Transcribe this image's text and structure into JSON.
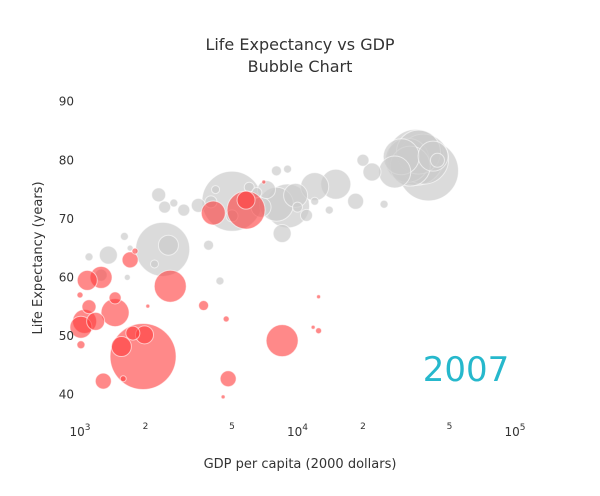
{
  "chart_data": {
    "type": "scatter",
    "title": "Life Expectancy vs GDP",
    "subtitle": "Bubble Chart",
    "xlabel": "GDP per capita (2000 dollars)",
    "ylabel": "Life Expectancy (years)",
    "x_scale": "log",
    "xlim": [
      1000,
      100000
    ],
    "ylim": [
      36,
      92
    ],
    "x_major_ticks": [
      {
        "value": 1000,
        "base": "10",
        "exp": "3"
      },
      {
        "value": 10000,
        "base": "10",
        "exp": "4"
      },
      {
        "value": 100000,
        "base": "10",
        "exp": "5"
      }
    ],
    "x_minor_ticks": [
      {
        "value": 2000,
        "label": "2"
      },
      {
        "value": 5000,
        "label": "5"
      },
      {
        "value": 20000,
        "label": "2"
      },
      {
        "value": 50000,
        "label": "5"
      }
    ],
    "y_ticks": [
      40,
      50,
      60,
      70,
      80,
      90
    ],
    "annotation": "2007",
    "colors": {
      "highlight": "#ff3b3b",
      "other": "#cccccc",
      "annotation": "#26b8cc"
    },
    "series": [
      {
        "color": "#ff3b3b",
        "points": [
          {
            "x": 1950,
            "y": 46.5,
            "r": 33
          },
          {
            "x": 1050,
            "y": 52.5,
            "r": 12
          },
          {
            "x": 1010,
            "y": 51.5,
            "r": 11
          },
          {
            "x": 1080,
            "y": 59.5,
            "r": 10
          },
          {
            "x": 1250,
            "y": 60.0,
            "r": 11
          },
          {
            "x": 1450,
            "y": 54.0,
            "r": 14
          },
          {
            "x": 1550,
            "y": 48.2,
            "r": 10
          },
          {
            "x": 1180,
            "y": 52.5,
            "r": 9
          },
          {
            "x": 1450,
            "y": 56.5,
            "r": 6
          },
          {
            "x": 1700,
            "y": 63.0,
            "r": 8
          },
          {
            "x": 1750,
            "y": 50.5,
            "r": 7
          },
          {
            "x": 1980,
            "y": 50.2,
            "r": 9
          },
          {
            "x": 2600,
            "y": 58.5,
            "r": 16
          },
          {
            "x": 1280,
            "y": 42.3,
            "r": 8
          },
          {
            "x": 3700,
            "y": 55.2,
            "r": 5
          },
          {
            "x": 4800,
            "y": 42.7,
            "r": 8
          },
          {
            "x": 4700,
            "y": 52.9,
            "r": 3
          },
          {
            "x": 4550,
            "y": 39.6,
            "r": 2
          },
          {
            "x": 8500,
            "y": 49.2,
            "r": 16
          },
          {
            "x": 4100,
            "y": 71.0,
            "r": 12
          },
          {
            "x": 5800,
            "y": 71.5,
            "r": 19
          },
          {
            "x": 5800,
            "y": 73.2,
            "r": 9
          },
          {
            "x": 12500,
            "y": 56.7,
            "r": 2
          },
          {
            "x": 12500,
            "y": 50.9,
            "r": 3
          },
          {
            "x": 11800,
            "y": 51.5,
            "r": 2
          },
          {
            "x": 7000,
            "y": 76.3,
            "r": 2
          },
          {
            "x": 1100,
            "y": 55.0,
            "r": 7
          },
          {
            "x": 1580,
            "y": 42.7,
            "r": 3
          },
          {
            "x": 1000,
            "y": 57.0,
            "r": 3
          },
          {
            "x": 2050,
            "y": 55.1,
            "r": 2
          },
          {
            "x": 1790,
            "y": 64.5,
            "r": 3
          },
          {
            "x": 1010,
            "y": 48.5,
            "r": 4
          }
        ]
      },
      {
        "color": "#cccccc",
        "points": [
          {
            "x": 2400,
            "y": 64.8,
            "r": 27
          },
          {
            "x": 2550,
            "y": 65.5,
            "r": 10
          },
          {
            "x": 5000,
            "y": 73.0,
            "r": 30
          },
          {
            "x": 40000,
            "y": 78.2,
            "r": 30
          },
          {
            "x": 35000,
            "y": 80.5,
            "r": 28
          },
          {
            "x": 32000,
            "y": 80.0,
            "r": 22
          },
          {
            "x": 36000,
            "y": 81.4,
            "r": 22
          },
          {
            "x": 38000,
            "y": 80.2,
            "r": 25
          },
          {
            "x": 33000,
            "y": 79.0,
            "r": 20
          },
          {
            "x": 30000,
            "y": 80.6,
            "r": 18
          },
          {
            "x": 28000,
            "y": 78.0,
            "r": 16
          },
          {
            "x": 42000,
            "y": 80.7,
            "r": 15
          },
          {
            "x": 9000,
            "y": 72.2,
            "r": 22
          },
          {
            "x": 8000,
            "y": 72.5,
            "r": 17
          },
          {
            "x": 9800,
            "y": 74.0,
            "r": 12
          },
          {
            "x": 12000,
            "y": 75.5,
            "r": 14
          },
          {
            "x": 15000,
            "y": 75.9,
            "r": 15
          },
          {
            "x": 18500,
            "y": 73.0,
            "r": 8
          },
          {
            "x": 22000,
            "y": 78.0,
            "r": 9
          },
          {
            "x": 20000,
            "y": 80.0,
            "r": 6
          },
          {
            "x": 44000,
            "y": 80.0,
            "r": 7
          },
          {
            "x": 8500,
            "y": 67.5,
            "r": 9
          },
          {
            "x": 7200,
            "y": 75.0,
            "r": 9
          },
          {
            "x": 6800,
            "y": 72.0,
            "r": 10
          },
          {
            "x": 2300,
            "y": 74.1,
            "r": 7
          },
          {
            "x": 2450,
            "y": 72.0,
            "r": 6
          },
          {
            "x": 2700,
            "y": 72.7,
            "r": 4
          },
          {
            "x": 3000,
            "y": 71.5,
            "r": 6
          },
          {
            "x": 3500,
            "y": 72.3,
            "r": 7
          },
          {
            "x": 4000,
            "y": 72.9,
            "r": 6
          },
          {
            "x": 6000,
            "y": 75.4,
            "r": 5
          },
          {
            "x": 5000,
            "y": 70.5,
            "r": 6
          },
          {
            "x": 3900,
            "y": 65.5,
            "r": 5
          },
          {
            "x": 4400,
            "y": 59.4,
            "r": 4
          },
          {
            "x": 8000,
            "y": 78.2,
            "r": 5
          },
          {
            "x": 9000,
            "y": 78.5,
            "r": 4
          },
          {
            "x": 1350,
            "y": 63.8,
            "r": 9
          },
          {
            "x": 1100,
            "y": 63.5,
            "r": 4
          },
          {
            "x": 1250,
            "y": 60.4,
            "r": 6
          },
          {
            "x": 1600,
            "y": 67.0,
            "r": 4
          },
          {
            "x": 1650,
            "y": 60.0,
            "r": 3
          },
          {
            "x": 2200,
            "y": 62.3,
            "r": 4
          },
          {
            "x": 11000,
            "y": 70.6,
            "r": 6
          },
          {
            "x": 10000,
            "y": 72.0,
            "r": 5
          },
          {
            "x": 14000,
            "y": 71.5,
            "r": 4
          },
          {
            "x": 25000,
            "y": 72.5,
            "r": 4
          },
          {
            "x": 6500,
            "y": 74.5,
            "r": 5
          },
          {
            "x": 12000,
            "y": 73.0,
            "r": 4
          },
          {
            "x": 1700,
            "y": 65.0,
            "r": 3
          },
          {
            "x": 4200,
            "y": 75.0,
            "r": 4
          }
        ]
      }
    ]
  }
}
